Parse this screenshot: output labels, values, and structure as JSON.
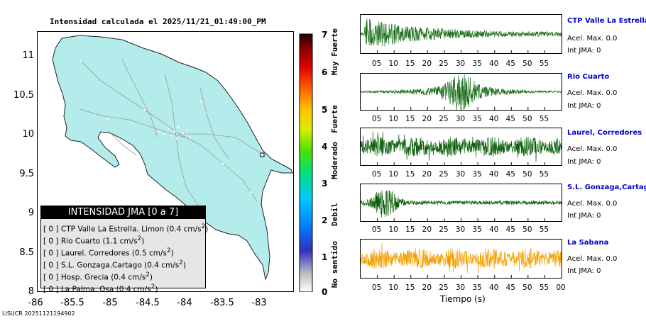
{
  "map": {
    "title": "Intensidad calculada el 2025/11/21_01:49:00_PM",
    "lat_labels": [
      "11",
      "10.5",
      "10",
      "9.5",
      "9",
      "8.5",
      "8"
    ],
    "lon_labels": [
      "-86",
      "-85.5",
      "-85",
      "-84.5",
      "-84",
      "-83.5",
      "-83"
    ],
    "land_color": "#b4ecec",
    "legend": {
      "title": "INTENSIDAD JMA [0 a 7]",
      "items": [
        {
          "level": "[ 0 ]",
          "name": "CTP Valle La Estrella. Limon",
          "accel": "(0.4 cm/s",
          "sup": "2",
          "close": ")"
        },
        {
          "level": "[ 0 ]",
          "name": "Rio Cuarto",
          "accel": "(1.1 cm/s",
          "sup": "2",
          "close": ")"
        },
        {
          "level": "[ 0 ]",
          "name": "Laurel. Corredores",
          "accel": "(0.5 cm/s",
          "sup": "2",
          "close": ")"
        },
        {
          "level": "[ 0 ]",
          "name": "S.L. Gonzaga.Cartago",
          "accel": "(0.4 cm/s",
          "sup": "2",
          "close": ")"
        },
        {
          "level": "[ 0 ]",
          "name": "Hosp. Grecia",
          "accel": "(0.4 cm/s",
          "sup": "2",
          "close": ")"
        },
        {
          "level": "[ 0 ]",
          "name": "La Palma. Osa",
          "accel": "(0.4 cm/s",
          "sup": "2",
          "close": ")"
        }
      ]
    }
  },
  "colorbar": {
    "numbers": [
      "7",
      "6",
      "5",
      "4",
      "3",
      "2",
      "1",
      "0"
    ],
    "categories": [
      "Muy Fuerte",
      "Fuerte",
      "Moderado",
      "Debil",
      "No sentido"
    ],
    "colors": [
      "#ffffff",
      "#bfbfbf",
      "#3030c0",
      "#0080ff",
      "#00c8ff",
      "#00e080",
      "#50e000",
      "#d8f000",
      "#ffc000",
      "#ff6000",
      "#e00000",
      "#900000",
      "#200000"
    ]
  },
  "traces": [
    {
      "station": "CTP Valle La Estrella, L",
      "accel": "Acel. Max. 0.0",
      "jma": "Int JMA: 0",
      "color": "#1a6e1a",
      "shape": "decay"
    },
    {
      "station": "Rio Cuarto",
      "accel": "Acel. Max. 0.0",
      "jma": "Int JMA: 0",
      "color": "#1a6e1a",
      "shape": "burst"
    },
    {
      "station": "Laurel, Corredores",
      "accel": "Acel. Max. 0.0",
      "jma": "Int JMA: 0",
      "color": "#0a5e0a",
      "shape": "noise"
    },
    {
      "station": "S.L. Gonzaga,Cartago",
      "accel": "Acel. Max. 0.0",
      "jma": "Int JMA: 0",
      "color": "#0a5e0a",
      "shape": "early"
    },
    {
      "station": "La Sabana",
      "accel": "Acel. Max. 0.0",
      "jma": "Int JMA: 0",
      "color": "#f5a000",
      "shape": "noise"
    }
  ],
  "time_ticks": [
    "05",
    "10",
    "15",
    "20",
    "25",
    "30",
    "35",
    "40",
    "45",
    "50",
    "55"
  ],
  "time_ticks_last": [
    "05",
    "10",
    "15",
    "20",
    "25",
    "30",
    "35",
    "40",
    "45",
    "50",
    "55",
    "00"
  ],
  "xaxis_label": "Tiempo (s)",
  "footer_id": "LISUCR 20251121194902"
}
